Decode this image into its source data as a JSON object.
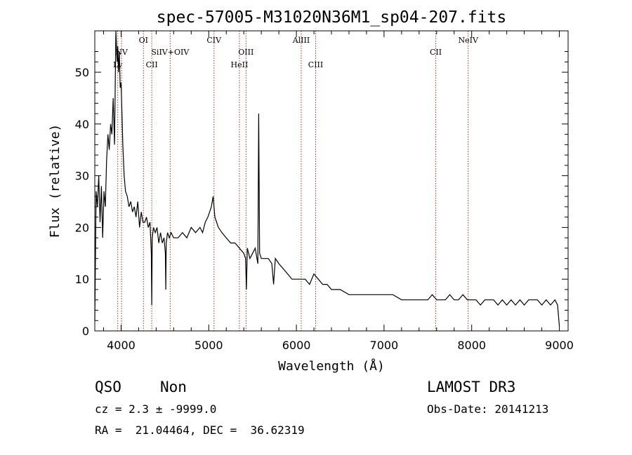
{
  "chart_data": {
    "type": "line",
    "title": "spec-57005-M31020N36M1_sp04-207.fits",
    "xlabel": "Wavelength (Å)",
    "ylabel": "Flux (relative)",
    "xlim": [
      3700,
      9100
    ],
    "ylim": [
      0,
      58
    ],
    "x_ticks": [
      4000,
      5000,
      6000,
      7000,
      8000,
      9000
    ],
    "y_ticks": [
      0,
      10,
      20,
      30,
      40,
      50
    ],
    "grid": false,
    "colors": {
      "spectrum": "#000000",
      "lines": "#b03020",
      "axes": "#000000"
    },
    "series": [
      {
        "x": [
          3700,
          3715,
          3730,
          3745,
          3760,
          3775,
          3790,
          3805,
          3820,
          3835,
          3850,
          3865,
          3880,
          3895,
          3910,
          3925,
          3940,
          3955,
          3962,
          3970,
          3980,
          3990,
          4000,
          4010,
          4020,
          4035,
          4050,
          4070,
          4090,
          4110,
          4130,
          4150,
          4170,
          4190,
          4210,
          4230,
          4250,
          4270,
          4290,
          4310,
          4330,
          4345,
          4350,
          4355,
          4370,
          4390,
          4410,
          4430,
          4450,
          4470,
          4490,
          4505,
          4510,
          4515,
          4530,
          4550,
          4570,
          4600,
          4650,
          4700,
          4750,
          4800,
          4850,
          4900,
          4930,
          4960,
          4990,
          5010,
          5030,
          5050,
          5070,
          5090,
          5110,
          5150,
          5200,
          5250,
          5300,
          5350,
          5400,
          5420,
          5430,
          5440,
          5470,
          5500,
          5530,
          5550,
          5560,
          5570,
          5580,
          5600,
          5640,
          5680,
          5720,
          5740,
          5760,
          5800,
          5850,
          5900,
          5950,
          6000,
          6050,
          6100,
          6150,
          6200,
          6250,
          6300,
          6350,
          6400,
          6500,
          6600,
          6700,
          6800,
          6900,
          7000,
          7100,
          7200,
          7300,
          7400,
          7500,
          7550,
          7600,
          7650,
          7700,
          7750,
          7800,
          7850,
          7900,
          7950,
          8000,
          8050,
          8100,
          8150,
          8200,
          8250,
          8300,
          8350,
          8400,
          8450,
          8500,
          8550,
          8600,
          8650,
          8700,
          8750,
          8800,
          8850,
          8900,
          8950,
          8980,
          9000
        ],
        "y": [
          2,
          27,
          24,
          30,
          21,
          28,
          18,
          27,
          24,
          33,
          38,
          35,
          40,
          38,
          45,
          36,
          58,
          52,
          55,
          50,
          54,
          47,
          48,
          42,
          36,
          30,
          27,
          26,
          24,
          25,
          23,
          24,
          22,
          25,
          20,
          23,
          21,
          21,
          22,
          20,
          21,
          15,
          5,
          18,
          20,
          19,
          20,
          17,
          19,
          17,
          18,
          15,
          8,
          17,
          19,
          18,
          19,
          18,
          18,
          19,
          18,
          20,
          19,
          20,
          19,
          21,
          22,
          23,
          24,
          26,
          22,
          21,
          20,
          19,
          18,
          17,
          17,
          16,
          15,
          14,
          8,
          16,
          14,
          15,
          16,
          14,
          13,
          42,
          15,
          14,
          14,
          14,
          13,
          9,
          14,
          13,
          12,
          11,
          10,
          10,
          10,
          10,
          9,
          11,
          10,
          9,
          9,
          8,
          8,
          7,
          7,
          7,
          7,
          7,
          7,
          6,
          6,
          6,
          6,
          7,
          6,
          6,
          6,
          7,
          6,
          6,
          7,
          6,
          6,
          6,
          5,
          6,
          6,
          6,
          5,
          6,
          5,
          6,
          5,
          6,
          5,
          6,
          6,
          6,
          5,
          6,
          5,
          6,
          5,
          1
        ]
      }
    ],
    "line_markers": [
      {
        "name": "Ly",
        "x": 3962,
        "row": 3
      },
      {
        "name": "NV",
        "x": 4005,
        "row": 2
      },
      {
        "name": "OI",
        "x": 4255,
        "row": 1
      },
      {
        "name": "CII",
        "x": 4350,
        "row": 3
      },
      {
        "name": "SiIV+OIV",
        "x": 4560,
        "row": 2
      },
      {
        "name": "CIV",
        "x": 5060,
        "row": 1
      },
      {
        "name": "HeII",
        "x": 5350,
        "row": 3
      },
      {
        "name": "OIII",
        "x": 5425,
        "row": 2
      },
      {
        "name": "AlIII",
        "x": 6055,
        "row": 1
      },
      {
        "name": "CIII",
        "x": 6220,
        "row": 3
      },
      {
        "name": "CII",
        "x": 7590,
        "row": 2
      },
      {
        "name": "NeIV",
        "x": 7960,
        "row": 1
      }
    ]
  },
  "info": {
    "class_label": "QSO",
    "subclass_label": "Non",
    "survey": "LAMOST DR3",
    "cz": "cz = 2.3 ± -9999.0",
    "obs_date": "Obs-Date: 20141213",
    "coords": "RA =  21.04464, DEC =  36.62319"
  }
}
